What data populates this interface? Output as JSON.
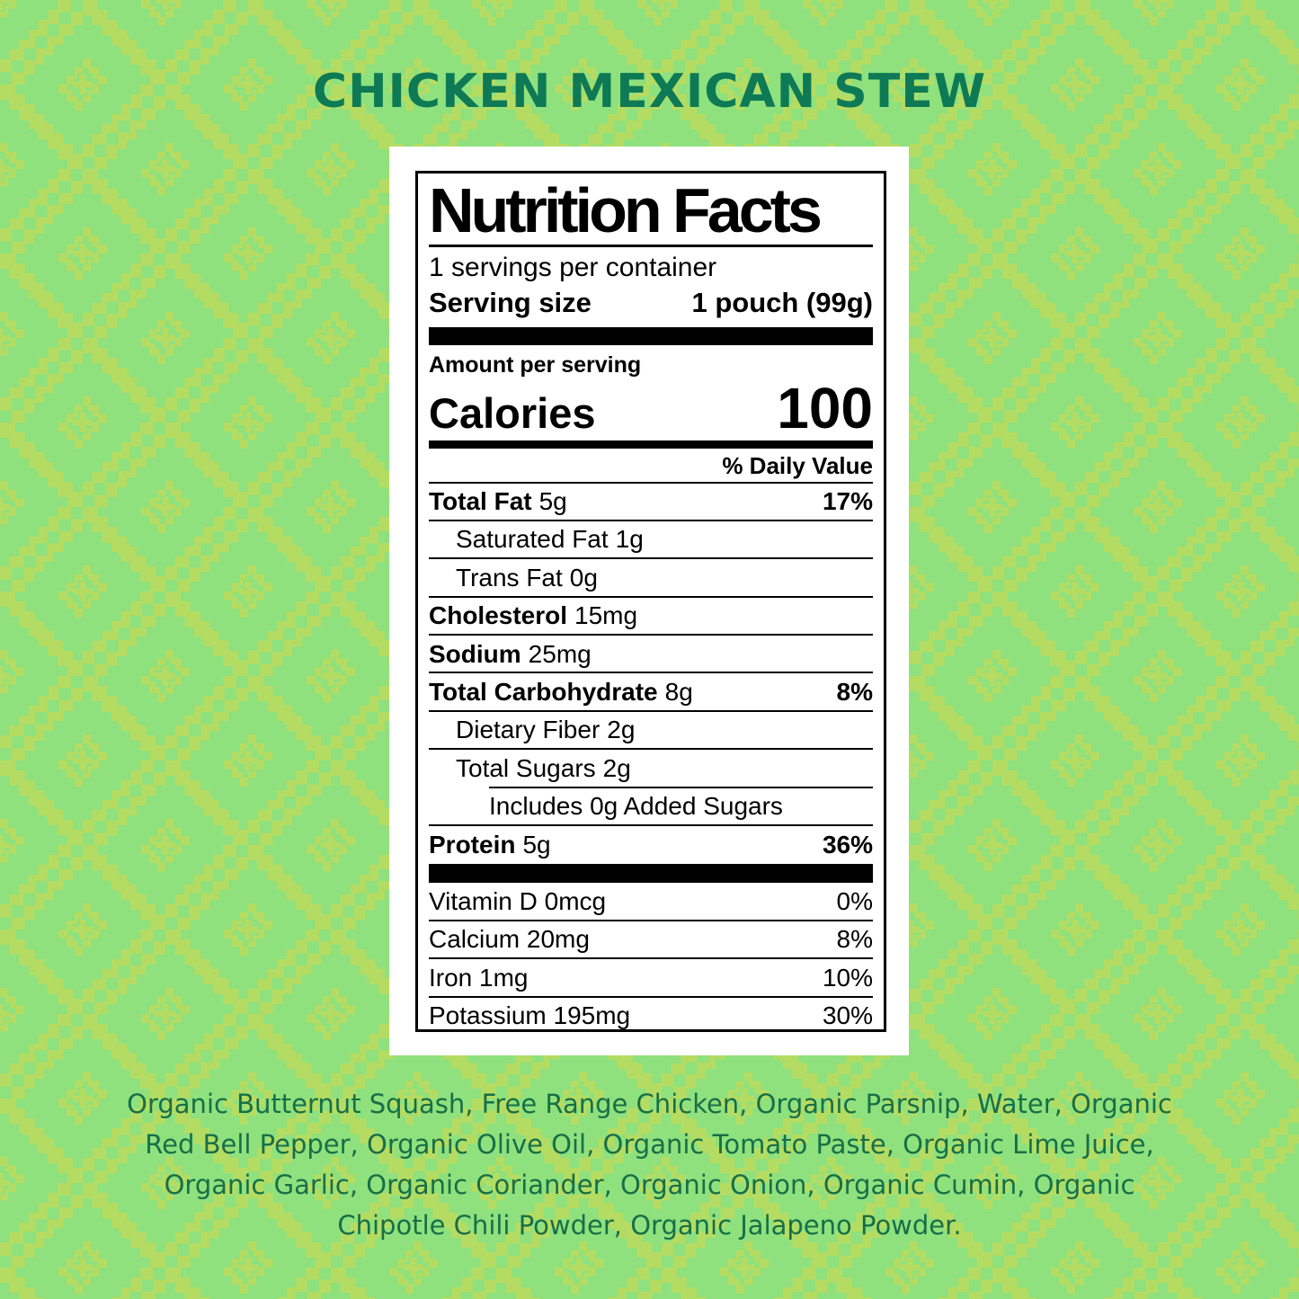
{
  "page": {
    "title": "CHICKEN MEXICAN STEW"
  },
  "colors": {
    "background": "#8ee17d",
    "pattern_motif": "#b5dc62",
    "title_text": "#0d7a55",
    "ingredients_text": "#176f47",
    "label_background": "#ffffff",
    "label_text": "#000000"
  },
  "nutrition_label": {
    "title": "Nutrition Facts",
    "servings_per_container": "1 servings per container",
    "serving_size": {
      "label": "Serving size",
      "value": "1 pouch (99g)"
    },
    "amount_per_serving": "Amount per serving",
    "calories": {
      "label": "Calories",
      "value": "100"
    },
    "daily_value_header": "% Daily Value",
    "nutrients": [
      {
        "name": "Total Fat",
        "amount": "5g",
        "daily_value": "17%"
      },
      {
        "name": "Saturated Fat",
        "amount": "1g",
        "daily_value": ""
      },
      {
        "name": "Trans Fat",
        "amount": "0g",
        "daily_value": ""
      },
      {
        "name": "Cholesterol",
        "amount": "15mg",
        "daily_value": ""
      },
      {
        "name": "Sodium",
        "amount": "25mg",
        "daily_value": ""
      },
      {
        "name": "Total Carbohydrate",
        "amount": "8g",
        "daily_value": "8%"
      },
      {
        "name": "Dietary Fiber",
        "amount": "2g",
        "daily_value": ""
      },
      {
        "name": "Total Sugars",
        "amount": "2g",
        "daily_value": ""
      },
      {
        "name": "Includes 0g Added Sugars",
        "amount": "",
        "daily_value": ""
      },
      {
        "name": "Protein",
        "amount": "5g",
        "daily_value": "36%"
      }
    ],
    "micronutrients": [
      {
        "name": "Vitamin D 0mcg",
        "daily_value": "0%"
      },
      {
        "name": "Calcium 20mg",
        "daily_value": "8%"
      },
      {
        "name": "Iron 1mg",
        "daily_value": "10%"
      },
      {
        "name": "Potassium 195mg",
        "daily_value": "30%"
      }
    ]
  },
  "ingredients": {
    "lines": [
      "Organic Butternut Squash, Free Range Chicken, Organic Parsnip, Water, Organic",
      "Red Bell Pepper, Organic Olive Oil, Organic Tomato Paste, Organic Lime Juice,",
      "Organic Garlic, Organic Coriander, Organic Onion, Organic Cumin, Organic",
      "Chipotle Chili Powder, Organic Jalapeno Powder."
    ]
  }
}
